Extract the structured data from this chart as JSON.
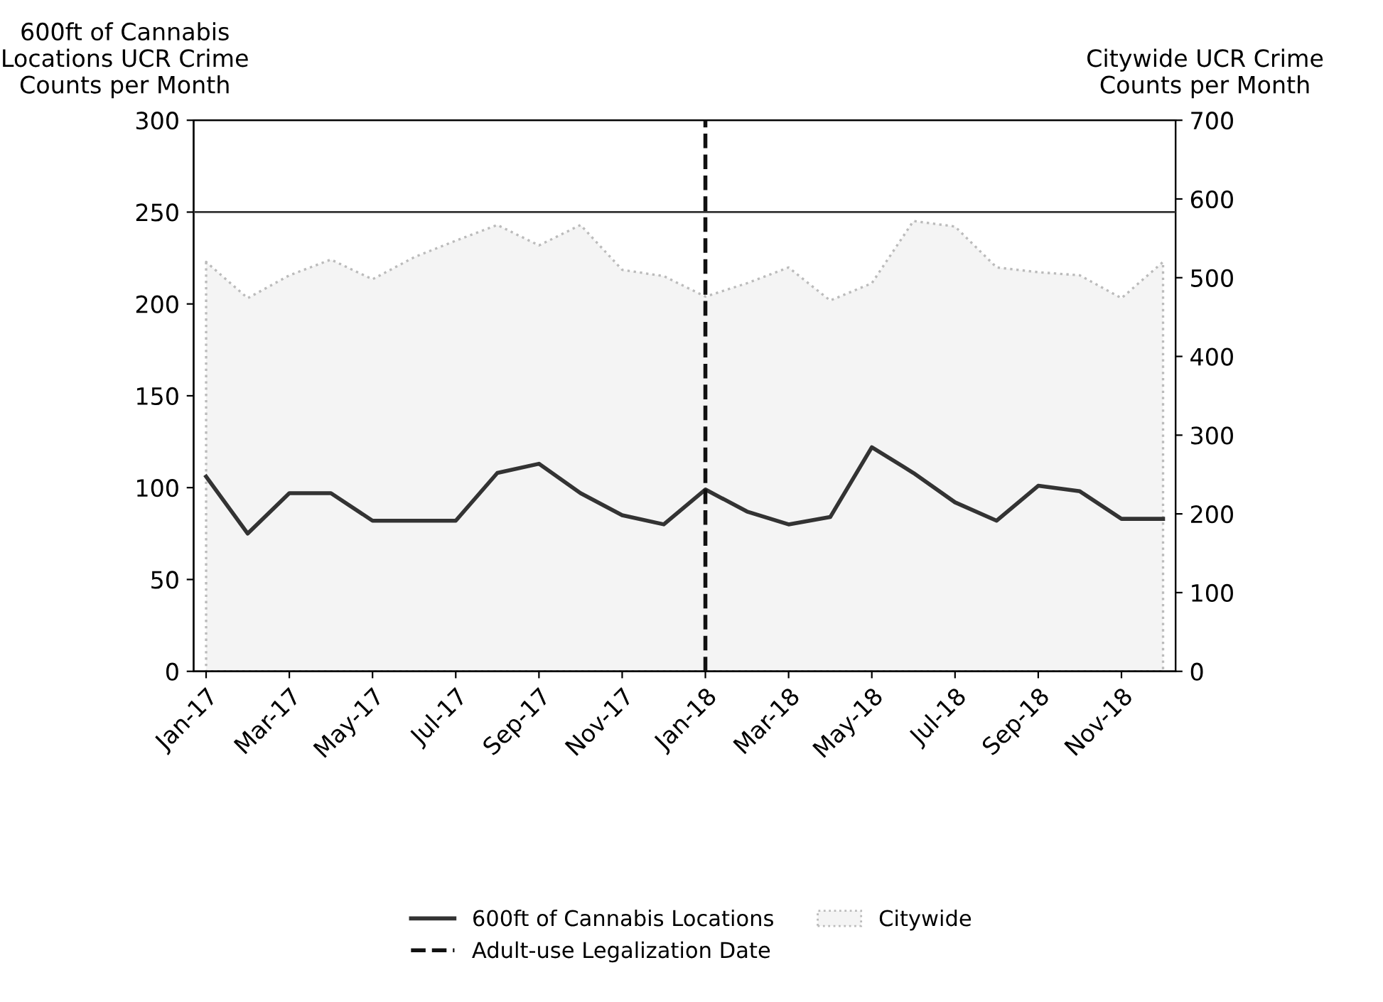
{
  "chart_data": {
    "type": "line",
    "ylabel": "600ft of Cannabis\nLocations UCR Crime\nCounts per Month",
    "y2label": "Citywide UCR Crime\nCounts per Month",
    "categories": [
      "Jan-17",
      null,
      "Mar-17",
      null,
      "May-17",
      null,
      "Jul-17",
      null,
      "Sep-17",
      null,
      "Nov-17",
      null,
      "Jan-18",
      null,
      "Mar-18",
      null,
      "May-18",
      null,
      "Jul-18",
      null,
      "Sep-18",
      null,
      "Nov-18",
      null
    ],
    "series": [
      {
        "name": "600ft of Cannabis Locations",
        "color": "#333333",
        "values": [
          106,
          75,
          97,
          97,
          82,
          82,
          82,
          108,
          113,
          97,
          85,
          80,
          99,
          87,
          80,
          84,
          122,
          108,
          92,
          82,
          101,
          98,
          83,
          83
        ]
      },
      {
        "name": "Citywide",
        "type": "area",
        "axis": "y2",
        "color": "#bbbbbb",
        "values": [
          520,
          474,
          503,
          523,
          498,
          526,
          547,
          567,
          541,
          567,
          510,
          502,
          476,
          493,
          513,
          471,
          493,
          572,
          565,
          513,
          507,
          503,
          474,
          520
        ]
      }
    ],
    "ylim": [
      0,
      300
    ],
    "yticks": [
      0,
      50,
      100,
      150,
      200,
      250,
      300
    ],
    "y2lim": [
      0,
      700
    ],
    "y2ticks": [
      0,
      100,
      200,
      300,
      400,
      500,
      600,
      700
    ],
    "ref_lines": [
      {
        "axis": "x",
        "value": "Jan-18",
        "label": "Adult-use Legalization Date",
        "color": "#111111",
        "line_style": "dashed"
      },
      {
        "axis": "y",
        "value": 250,
        "label": null,
        "color": "#333333",
        "line_style": "solid"
      }
    ],
    "grid": false,
    "legend": "bottom"
  }
}
